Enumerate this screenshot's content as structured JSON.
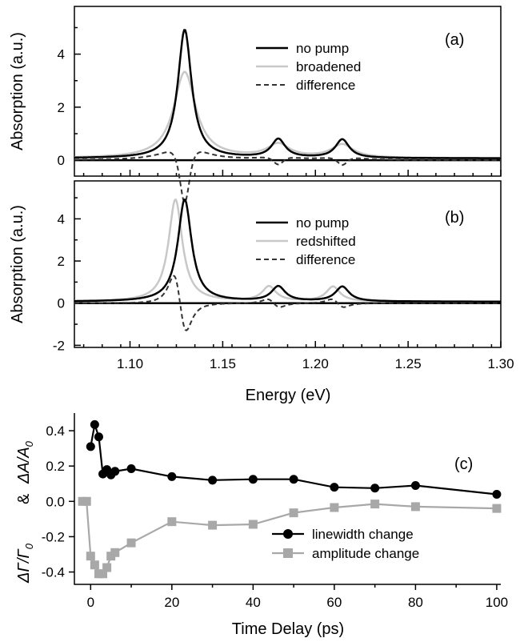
{
  "chart_data": [
    {
      "id": "a",
      "type": "line",
      "panel_label": "(a)",
      "xlabel": "",
      "ylabel": "Absorption (a.u.)",
      "xlim": [
        1.07,
        1.3
      ],
      "ylim": [
        -0.6,
        5.8
      ],
      "yticks": [
        "0",
        "2",
        "4"
      ],
      "ytick_values": [
        0,
        2,
        4
      ],
      "zero_line": true,
      "legend_position": "top-right",
      "series": [
        {
          "name": "no pump",
          "color": "#000000",
          "dash": "",
          "width": 2.5,
          "peaks": [
            [
              1.1295,
              4.85,
              0.0045
            ],
            [
              1.18,
              0.7,
              0.0045
            ],
            [
              1.2145,
              0.7,
              0.0045
            ]
          ],
          "baseline": 0.07
        },
        {
          "name": "broadened",
          "color": "#c8c8c8",
          "dash": "",
          "width": 2.5,
          "peaks": [
            [
              1.1295,
              3.25,
              0.0072
            ],
            [
              1.18,
              0.5,
              0.0072
            ],
            [
              1.2145,
              0.5,
              0.0072
            ]
          ],
          "baseline": 0.07
        },
        {
          "name": "difference",
          "color": "#333333",
          "dash": "6,4",
          "width": 2,
          "difference_of": [
            0,
            1
          ],
          "scale": 1.0
        }
      ]
    },
    {
      "id": "b",
      "type": "line",
      "panel_label": "(b)",
      "xlabel": "Energy (eV)",
      "ylabel": "Absorption (a.u.)",
      "xlim": [
        1.07,
        1.3
      ],
      "ylim": [
        -2.1,
        5.8
      ],
      "xticks": [
        "1.10",
        "1.15",
        "1.20",
        "1.25",
        "1.30"
      ],
      "xtick_values": [
        1.1,
        1.15,
        1.2,
        1.25,
        1.3
      ],
      "yticks": [
        "-2",
        "0",
        "2",
        "4"
      ],
      "ytick_values": [
        -2,
        0,
        2,
        4
      ],
      "zero_line": true,
      "legend_position": "top-right",
      "series": [
        {
          "name": "no pump",
          "color": "#000000",
          "dash": "",
          "width": 2.5,
          "peaks": [
            [
              1.1295,
              4.85,
              0.0045
            ],
            [
              1.18,
              0.7,
              0.0045
            ],
            [
              1.2145,
              0.7,
              0.0045
            ]
          ],
          "baseline": 0.07
        },
        {
          "name": "redshifted",
          "color": "#c8c8c8",
          "dash": "",
          "width": 2.5,
          "peaks": [
            [
              1.1245,
              4.85,
              0.0045
            ],
            [
              1.175,
              0.7,
              0.0045
            ],
            [
              1.2095,
              0.7,
              0.0045
            ]
          ],
          "baseline": 0.07
        },
        {
          "name": "difference",
          "color": "#333333",
          "dash": "6,4",
          "width": 2,
          "difference_of": [
            0,
            1
          ],
          "scale": 0.45
        }
      ]
    },
    {
      "id": "c",
      "type": "line",
      "panel_label": "(c)",
      "xlabel": "Time Delay (ps)",
      "ylabel_left": "ΔΓ/Γ",
      "ylabel_sub0": "0",
      "ylabel_amp": "&",
      "ylabel_right": "ΔA/A",
      "ylabel_sub1": "0",
      "xlim": [
        -4,
        101
      ],
      "ylim": [
        -0.47,
        0.5
      ],
      "xticks": [
        "0",
        "20",
        "40",
        "60",
        "80",
        "100"
      ],
      "xtick_values": [
        0,
        20,
        40,
        60,
        80,
        100
      ],
      "yticks": [
        "-0.4",
        "-0.2",
        "0.0",
        "0.2",
        "0.4"
      ],
      "ytick_values": [
        -0.4,
        -0.2,
        0.0,
        0.2,
        0.4
      ],
      "legend_position": "bottom-right",
      "series": [
        {
          "name": "linewidth change",
          "color": "#000000",
          "marker": "circle",
          "x": [
            0,
            1,
            2,
            3,
            4,
            5,
            6,
            10,
            20,
            30,
            40,
            50,
            60,
            70,
            80,
            100
          ],
          "y": [
            0.31,
            0.435,
            0.365,
            0.155,
            0.18,
            0.15,
            0.17,
            0.185,
            0.14,
            0.12,
            0.125,
            0.125,
            0.08,
            0.075,
            0.09,
            0.04
          ]
        },
        {
          "name": "amplitude change",
          "color": "#a8a8a8",
          "marker": "square",
          "x": [
            -2,
            -1,
            0,
            1,
            2,
            3,
            4,
            5,
            6,
            10,
            20,
            30,
            40,
            50,
            60,
            70,
            80,
            100
          ],
          "y": [
            0.0,
            0.0,
            -0.31,
            -0.36,
            -0.41,
            -0.41,
            -0.375,
            -0.31,
            -0.29,
            -0.235,
            -0.115,
            -0.135,
            -0.13,
            -0.065,
            -0.035,
            -0.015,
            -0.03,
            -0.04
          ]
        }
      ]
    }
  ]
}
